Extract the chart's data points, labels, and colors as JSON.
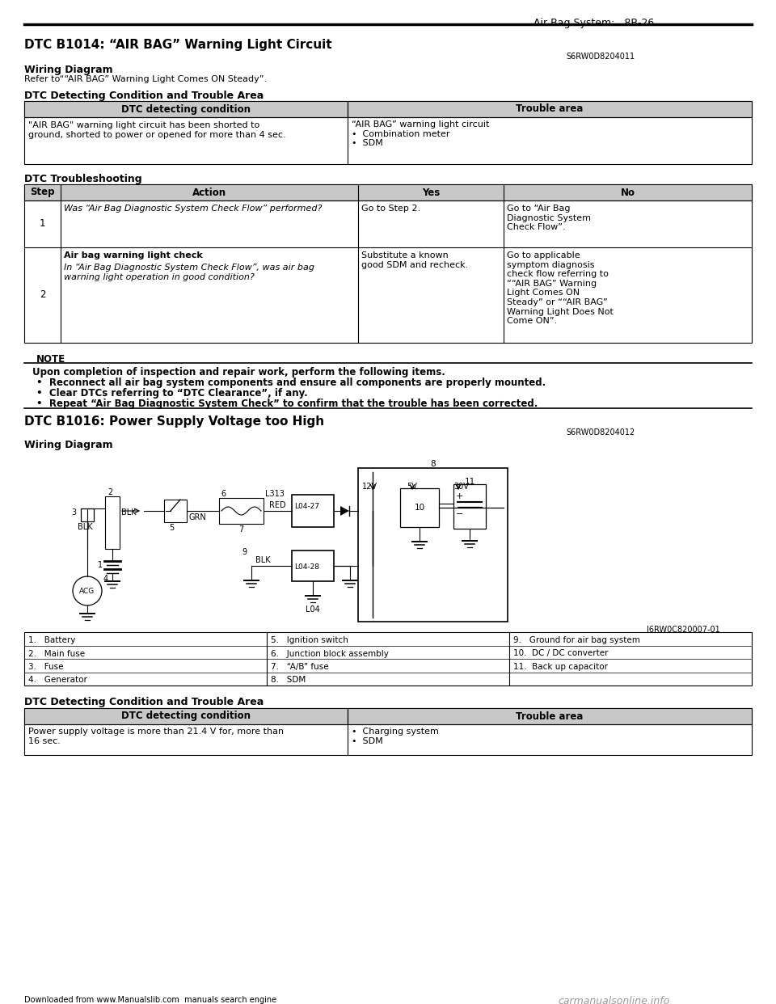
{
  "header_right": "Air Bag System:   8B-26",
  "title1": "DTC B1014: “AIR BAG” Warning Light Circuit",
  "code1": "S6RW0D8204011",
  "wiring_label1": "Wiring Diagram",
  "wiring_ref1": "Refer to““AIR BAG” Warning Light Comes ON Steady”.",
  "dtc_detect_title1": "DTC Detecting Condition and Trouble Area",
  "dtc_col1": "DTC detecting condition",
  "dtc_col2": "Trouble area",
  "dtc_row1_c1": "\"AIR BAG\" warning light circuit has been shorted to\nground, shorted to power or opened for more than 4 sec.",
  "dtc_row1_c2": "“AIR BAG” warning light circuit\n•  Combination meter\n•  SDM",
  "ts_title": "DTC Troubleshooting",
  "ts_headers": [
    "Step",
    "Action",
    "Yes",
    "No"
  ],
  "ts_row1": [
    "1",
    "Was “Air Bag Diagnostic System Check Flow” performed?",
    "Go to Step 2.",
    "Go to “Air Bag\nDiagnostic System\nCheck Flow”."
  ],
  "ts_row2_bold": "Air bag warning light check",
  "ts_row2_italic": "In “Air Bag Diagnostic System Check Flow”, was air bag\nwarning light operation in good condition?",
  "ts_row2_yes": "Substitute a known\ngood SDM and recheck.",
  "ts_row2_no": "Go to applicable\nsymptom diagnosis\ncheck flow referring to\n““AIR BAG” Warning\nLight Comes ON\nSteady” or ““AIR BAG”\nWarning Light Does Not\nCome ON”.",
  "note_title": "NOTE",
  "note_line0": "Upon completion of inspection and repair work, perform the following items.",
  "note_line1": "•  Reconnect all air bag system components and ensure all components are properly mounted.",
  "note_line2": "•  Clear DTCs referring to “DTC Clearance”, if any.",
  "note_line3": "•  Repeat “Air Bag Diagnostic System Check” to confirm that the trouble has been corrected.",
  "title2": "DTC B1016: Power Supply Voltage too High",
  "code2": "S6RW0D8204012",
  "wiring_label2": "Wiring Diagram",
  "dtc_detect_title2": "DTC Detecting Condition and Trouble Area",
  "dtc2_row1_c1": "Power supply voltage is more than 21.4 V for, more than\n16 sec.",
  "dtc2_row1_c2": "•  Charging system\n•  SDM",
  "footer_left": "Downloaded from www.Manualslib.com  manuals search engine",
  "footer_right": "carmanualsonline.info",
  "diagram_ref": "I6RW0C820007-01",
  "legend_col1": [
    "1.   Battery",
    "2.   Main fuse",
    "3.   Fuse",
    "4.   Generator"
  ],
  "legend_col2": [
    "5.   Ignition switch",
    "6.   Junction block assembly",
    "7.   “A/B” fuse",
    "8.   SDM"
  ],
  "legend_col3": [
    "9.   Ground for air bag system",
    "10.  DC / DC converter",
    "11.  Back up capacitor",
    ""
  ]
}
